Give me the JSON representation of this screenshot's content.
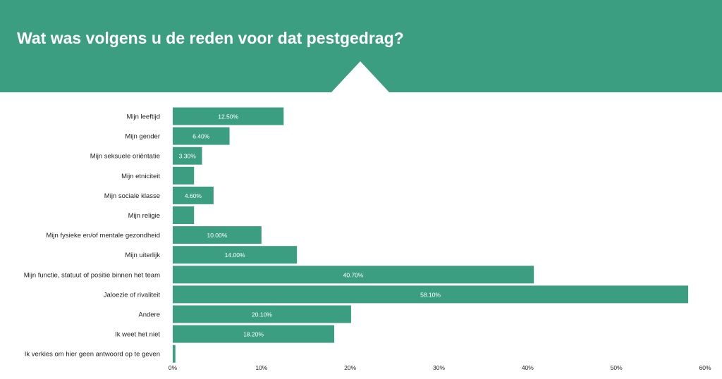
{
  "header": {
    "title": "Wat was volgens u de reden voor dat pestgedrag?"
  },
  "colors": {
    "header_bg": "#3c9e81",
    "bar": "#3c9e81"
  },
  "chart_data": {
    "type": "bar",
    "orientation": "horizontal",
    "title": "Wat was volgens u de reden voor dat pestgedrag?",
    "categories": [
      "Mijn leeftijd",
      "Mijn gender",
      "Mijn seksuele oriëntatie",
      "Mijn etniciteit",
      "Mijn sociale klasse",
      "Mijn religie",
      "Mijn fysieke en/of mentale gezondheid",
      "Mijn uiterlijk",
      "Mijn functie, statuut of positie binnen het team",
      "Jaloezie of rivaliteit",
      "Andere",
      "Ik weet het niet",
      "Ik verkies om hier geen antwoord op te geven"
    ],
    "values": [
      12.5,
      6.4,
      3.3,
      2.4,
      4.6,
      2.4,
      10.0,
      14.0,
      40.7,
      58.1,
      20.1,
      18.2,
      0.3
    ],
    "value_labels": [
      "12.50%",
      "6.40%",
      "3.30%",
      "",
      "4.60%",
      "",
      "10.00%",
      "14.00%",
      "40.70%",
      "58.10%",
      "20.10%",
      "18.20%",
      ""
    ],
    "xlim": [
      0,
      60
    ],
    "xticks": [
      "0%",
      "10%",
      "20%",
      "30%",
      "40%",
      "50%",
      "60%"
    ],
    "grid": false,
    "legend": "none"
  }
}
